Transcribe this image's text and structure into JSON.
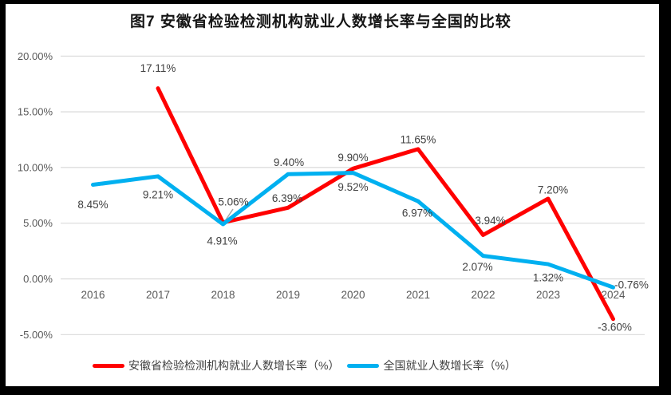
{
  "title": "图7 安徽省检验检测机构就业人数增长率与全国的比较",
  "colors": {
    "grid": "#d9d9d9",
    "axis_text": "#595959",
    "data_label_text": "#404040",
    "frame": "#000000",
    "background": "#ffffff"
  },
  "chart_data": {
    "type": "line",
    "title": "图7 安徽省检验检测机构就业人数增长率与全国的比较",
    "categories": [
      "2016",
      "2017",
      "2018",
      "2019",
      "2020",
      "2021",
      "2022",
      "2023",
      "2024"
    ],
    "series": [
      {
        "name": "安徽省检验检测机构就业人数增长率（%）",
        "color": "#ff0000",
        "values": [
          null,
          17.11,
          5.06,
          6.39,
          9.9,
          11.65,
          3.94,
          7.2,
          -3.6
        ],
        "labels": [
          "",
          "17.11%",
          "5.06%",
          "6.39%",
          "9.90%",
          "11.65%",
          "3.94%",
          "7.20%",
          "-3.60%"
        ],
        "label_offsets": [
          [
            0,
            0
          ],
          [
            0,
            -25
          ],
          [
            13,
            -26
          ],
          [
            -1,
            -12
          ],
          [
            0,
            -14
          ],
          [
            0,
            -12
          ],
          [
            9,
            -18
          ],
          [
            6,
            -11
          ],
          [
            2,
            10
          ]
        ]
      },
      {
        "name": "全国就业人数增长率（%）",
        "color": "#00b0f0",
        "values": [
          8.45,
          9.21,
          4.91,
          9.4,
          9.52,
          6.97,
          2.07,
          1.32,
          -0.76
        ],
        "labels": [
          "8.45%",
          "9.21%",
          "4.91%",
          "9.40%",
          "9.52%",
          "6.97%",
          "2.07%",
          "1.32%",
          "-0.76%"
        ],
        "label_offsets": [
          [
            0,
            25
          ],
          [
            0,
            23
          ],
          [
            -1,
            21
          ],
          [
            1,
            -15
          ],
          [
            0,
            18
          ],
          [
            -1,
            15
          ],
          [
            -7,
            14
          ],
          [
            0,
            17
          ],
          [
            23,
            -3
          ]
        ]
      }
    ],
    "y_axis": {
      "ticks": [
        {
          "label": "20.00%",
          "value": 20
        },
        {
          "label": "15.00%",
          "value": 15
        },
        {
          "label": "10.00%",
          "value": 10
        },
        {
          "label": "5.00%",
          "value": 5
        },
        {
          "label": "0.00%",
          "value": 0
        },
        {
          "label": "-5.00%",
          "value": -5
        }
      ]
    },
    "ylim": [
      -5,
      20
    ],
    "grid": true,
    "legend_position": "bottom",
    "label_leader": {
      "from": [
        282,
        277
      ],
      "to": [
        292,
        262
      ]
    }
  },
  "legend": {
    "items": [
      {
        "label": "安徽省检验检测机构就业人数增长率（%）"
      },
      {
        "label": "全国就业人数增长率（%）"
      }
    ]
  }
}
